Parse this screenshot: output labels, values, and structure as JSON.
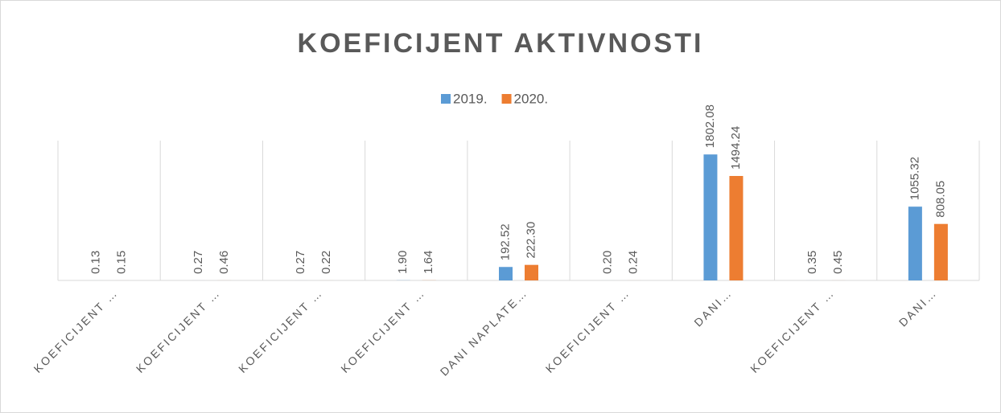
{
  "chart_data": {
    "type": "bar",
    "title": "KOEFICIJENT AKTIVNOSTI",
    "categories": [
      "KOEFICIJENT …",
      "KOEFICIJENT …",
      "KOEFICIJENT …",
      "KOEFICIJENT …",
      "DANI NAPLATE…",
      "KOEFICIJENT …",
      "DANI…",
      "KOEFICIJENT …",
      "DANI…"
    ],
    "series": [
      {
        "name": "2019.",
        "color": "#5b9bd5",
        "values": [
          0.13,
          0.27,
          0.27,
          1.9,
          192.52,
          0.2,
          1802.08,
          0.35,
          1055.32
        ],
        "value_labels": [
          "0.13",
          "0.27",
          "0.27",
          "1.90",
          "192.52",
          "0.20",
          "1802.08",
          "0.35",
          "1055.32"
        ]
      },
      {
        "name": "2020.",
        "color": "#ed7d31",
        "values": [
          0.15,
          0.46,
          0.22,
          1.64,
          222.3,
          0.24,
          1494.24,
          0.45,
          808.05
        ],
        "value_labels": [
          "0.15",
          "0.46",
          "0.22",
          "1.64",
          "222.30",
          "0.24",
          "1494.24",
          "0.45",
          "808.05"
        ]
      }
    ],
    "ylim": [
      0,
      2000
    ],
    "legend": "top"
  }
}
